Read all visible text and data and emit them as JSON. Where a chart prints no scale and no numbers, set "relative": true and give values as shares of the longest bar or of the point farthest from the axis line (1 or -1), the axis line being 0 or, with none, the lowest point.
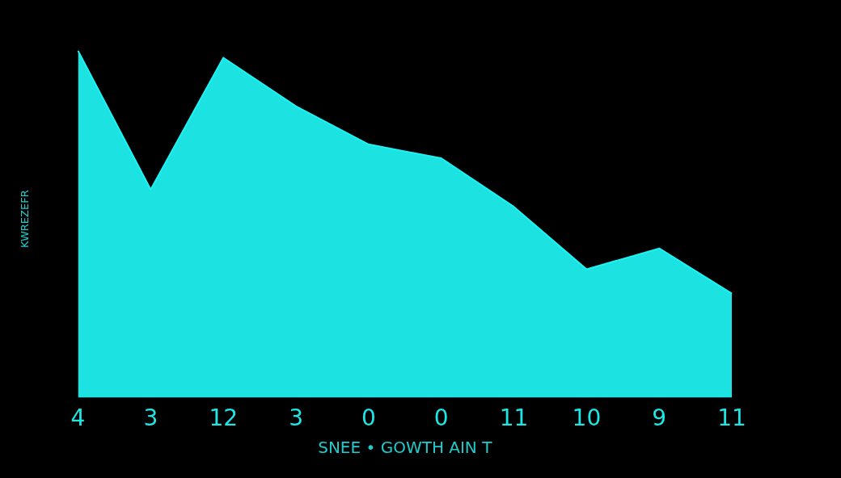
{
  "chart_data": {
    "type": "area",
    "relative": true,
    "xlabel": "SNEE • GOWTH AIN T",
    "ylabel": "KWREZEFR",
    "categories": [
      "4",
      "3",
      "12",
      "3",
      "0",
      "0",
      "11",
      "10",
      "9",
      "11"
    ],
    "series": [
      {
        "color": "#1ef2f2",
        "values": [
          1,
          0.6,
          0.98,
          0.84,
          0.73,
          0.69,
          0.55,
          0.37,
          0.43,
          0.3
        ]
      }
    ]
  }
}
